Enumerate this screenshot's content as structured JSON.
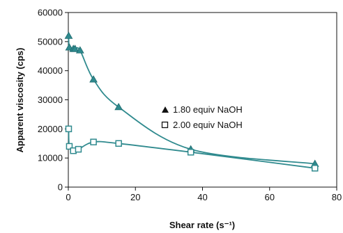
{
  "chart_data": {
    "type": "line",
    "title": "",
    "xlabel": "Shear rate (s⁻¹)",
    "ylabel": "Apparent viscosity (cps)",
    "xlim": [
      0,
      80
    ],
    "ylim": [
      0,
      60000
    ],
    "xticks": [
      0,
      20,
      40,
      60,
      80
    ],
    "yticks": [
      0,
      10000,
      20000,
      30000,
      40000,
      50000,
      60000
    ],
    "grid": false,
    "legend_position": "center-right",
    "line_color": "#2f8a8e",
    "series": [
      {
        "name": "1.80 equiv NaOH",
        "marker": "filled-triangle",
        "x": [
          0.1,
          0.3,
          1.5,
          2.0,
          3.5,
          7.5,
          15.0,
          36.5,
          73.5
        ],
        "y": [
          52000,
          48000,
          47500,
          47500,
          47000,
          37000,
          27500,
          13000,
          8000
        ]
      },
      {
        "name": "2.00 equiv NaOH",
        "marker": "open-square",
        "x": [
          0.1,
          0.3,
          1.5,
          3.0,
          7.5,
          15.0,
          36.5,
          73.5
        ],
        "y": [
          20000,
          14000,
          12500,
          13000,
          15500,
          15000,
          12000,
          6500
        ]
      }
    ]
  }
}
